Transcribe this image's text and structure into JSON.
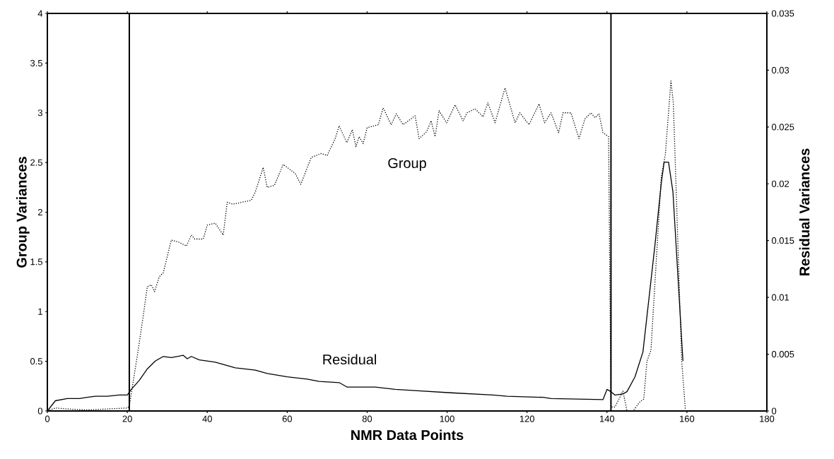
{
  "chart_data": {
    "type": "line",
    "xlabel": "NMR Data Points",
    "ylabel": "Group Variances",
    "y2label": "Residual Variances",
    "xlim": [
      0,
      180
    ],
    "xticks": [
      0,
      20,
      40,
      60,
      80,
      100,
      120,
      140,
      160,
      180
    ],
    "ylim": [
      0,
      4
    ],
    "yticks": [
      0,
      0.5,
      1,
      1.5,
      2,
      2.5,
      3,
      3.5,
      4
    ],
    "y2lim": [
      0,
      0.035
    ],
    "y2ticks": [
      0,
      0.005,
      0.01,
      0.015,
      0.02,
      0.025,
      0.03,
      0.035
    ],
    "grid": false,
    "legend": false,
    "marker": "none",
    "ref_lines": [
      {
        "axis": "x",
        "value": 20.5,
        "color": "#000000",
        "line_style": "solid"
      },
      {
        "axis": "x",
        "value": 141,
        "color": "#000000",
        "line_style": "solid"
      }
    ],
    "series": [
      {
        "name": "Group",
        "color": "#000000",
        "line_style": "dotted",
        "axis": "y",
        "x": [
          0,
          2,
          5,
          10,
          15,
          20,
          20.5,
          22.6,
          24,
          25,
          26,
          26.8,
          28,
          29,
          31,
          32.8,
          34.8,
          36,
          36.9,
          39,
          40,
          42,
          44,
          45,
          46.4,
          51,
          52,
          54,
          55,
          56.8,
          59,
          62,
          63.4,
          66,
          68.5,
          70,
          72,
          73,
          74.9,
          76.3,
          77.2,
          78,
          79,
          80,
          82.8,
          84,
          86,
          87.3,
          89,
          92,
          93,
          94.9,
          96,
          97,
          98,
          99.9,
          102,
          104,
          105,
          107,
          109,
          110.2,
          112,
          114.5,
          117,
          118.2,
          120.5,
          123,
          124.4,
          126,
          127.9,
          129,
          131,
          133,
          134.5,
          136,
          137,
          138,
          139,
          140.4,
          141,
          142,
          144,
          145,
          146.5,
          148.2,
          149.2,
          150,
          151,
          152.7,
          153.6,
          154.6,
          156,
          156.6,
          158.7,
          159.6
        ],
        "values": [
          0,
          0.03,
          0.02,
          0.01,
          0.02,
          0.03,
          0.05,
          0.58,
          0.96,
          1.25,
          1.27,
          1.2,
          1.35,
          1.39,
          1.72,
          1.7,
          1.66,
          1.77,
          1.73,
          1.73,
          1.87,
          1.89,
          1.77,
          2.1,
          2.08,
          2.12,
          2.2,
          2.45,
          2.25,
          2.27,
          2.48,
          2.39,
          2.28,
          2.55,
          2.59,
          2.57,
          2.74,
          2.87,
          2.7,
          2.83,
          2.66,
          2.76,
          2.69,
          2.85,
          2.88,
          3.05,
          2.88,
          2.99,
          2.88,
          2.97,
          2.74,
          2.81,
          2.92,
          2.76,
          3.02,
          2.9,
          3.08,
          2.92,
          3.0,
          3.04,
          2.96,
          3.1,
          2.9,
          3.25,
          2.9,
          3.0,
          2.88,
          3.09,
          2.9,
          3.0,
          2.8,
          3.0,
          3.0,
          2.74,
          2.94,
          3.0,
          2.95,
          2.99,
          2.8,
          2.76,
          0.04,
          0.04,
          0.2,
          0.0,
          0.0,
          0.09,
          0.12,
          0.5,
          0.61,
          1.76,
          2.36,
          2.58,
          3.32,
          3.1,
          0.5,
          0.02
        ]
      },
      {
        "name": "Residual",
        "color": "#000000",
        "line_style": "solid",
        "axis": "y2",
        "x": [
          0,
          2,
          5,
          8,
          10,
          12,
          15,
          18,
          20,
          21,
          23,
          25,
          27,
          29,
          31,
          34,
          35,
          36,
          38,
          42,
          47,
          52,
          55,
          60,
          65,
          68,
          73,
          75,
          82,
          87,
          92,
          101,
          111.5,
          115,
          124,
          126,
          139,
          140,
          141,
          142,
          144,
          145,
          147,
          149,
          152,
          153.6,
          154.3,
          155.4,
          156.5,
          159
        ],
        "values": [
          0,
          0.0009,
          0.0011,
          0.0011,
          0.0012,
          0.0013,
          0.0013,
          0.0014,
          0.0014,
          0.0019,
          0.0027,
          0.0037,
          0.0044,
          0.0048,
          0.0047,
          0.0049,
          0.0046,
          0.0048,
          0.0045,
          0.0043,
          0.0038,
          0.0036,
          0.0033,
          0.003,
          0.0028,
          0.0026,
          0.0025,
          0.0021,
          0.0021,
          0.0019,
          0.0018,
          0.0016,
          0.0014,
          0.0013,
          0.0012,
          0.0011,
          0.001,
          0.0019,
          0.0017,
          0.0014,
          0.0015,
          0.0017,
          0.003,
          0.0052,
          0.0146,
          0.0201,
          0.0219,
          0.0219,
          0.0193,
          0.0044
        ]
      }
    ]
  }
}
